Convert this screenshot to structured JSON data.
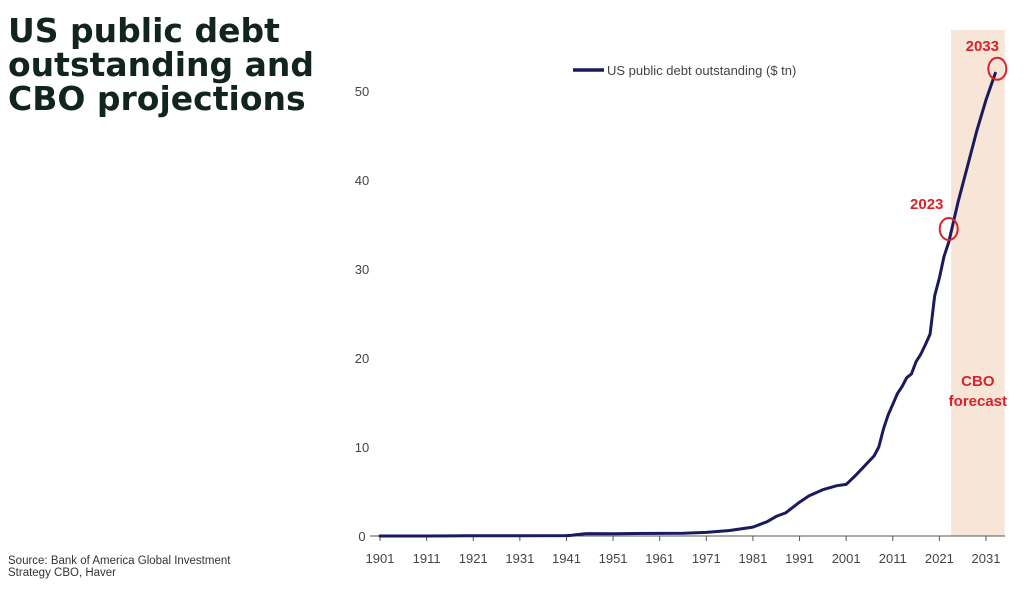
{
  "header": {
    "title_lines": [
      "US public debt",
      "outstanding and",
      "CBO projections"
    ]
  },
  "footer": {
    "source": "Source: Bank of America Global Investment Strategy CBO, Haver"
  },
  "chart_data": {
    "type": "line",
    "legend": "US public debt outstanding ($ tn)",
    "legend_position": "top",
    "xlim": [
      1899,
      2036
    ],
    "ylim": [
      0,
      53
    ],
    "x_ticks": [
      "1901",
      "1911",
      "1921",
      "1931",
      "1941",
      "1951",
      "1961",
      "1971",
      "1981",
      "1991",
      "2001",
      "2011",
      "2021",
      "2031"
    ],
    "y_ticks": [
      "0",
      "10",
      "20",
      "30",
      "40",
      "50"
    ],
    "grid": false,
    "forecast_region": {
      "x_start": 2023.5,
      "x_end": 2035,
      "label": [
        "CBO",
        "forecast"
      ],
      "color": "#f7e6d8"
    },
    "series": [
      {
        "name": "US public debt outstanding ($ tn)",
        "color": "#1c1a5e",
        "x": [
          1901,
          1911,
          1917,
          1919,
          1921,
          1931,
          1941,
          1942,
          1943,
          1944,
          1945,
          1946,
          1951,
          1961,
          1966,
          1971,
          1976,
          1981,
          1984,
          1986,
          1988,
          1991,
          1993,
          1996,
          1999,
          2001,
          2003,
          2005,
          2007,
          2008,
          2009,
          2010,
          2011,
          2012,
          2013,
          2014,
          2015,
          2016,
          2017,
          2018,
          2019,
          2020,
          2021,
          2022,
          2023,
          2025,
          2027,
          2029,
          2031,
          2033
        ],
        "values": [
          0.0,
          0.0,
          0.01,
          0.03,
          0.02,
          0.02,
          0.05,
          0.07,
          0.14,
          0.2,
          0.26,
          0.27,
          0.26,
          0.29,
          0.32,
          0.4,
          0.62,
          1.0,
          1.6,
          2.2,
          2.6,
          3.8,
          4.5,
          5.2,
          5.65,
          5.8,
          6.8,
          7.9,
          9.0,
          10.0,
          12.0,
          13.6,
          14.8,
          16.0,
          16.8,
          17.8,
          18.2,
          19.6,
          20.4,
          21.5,
          22.7,
          27.0,
          29.0,
          31.4,
          33.0,
          37.5,
          41.5,
          45.5,
          49.0,
          52.0
        ]
      }
    ],
    "annotations": [
      {
        "label": "2023",
        "x": 2023,
        "y": 34.5
      },
      {
        "label": "2033",
        "x": 2033,
        "y": 52.5
      }
    ]
  }
}
